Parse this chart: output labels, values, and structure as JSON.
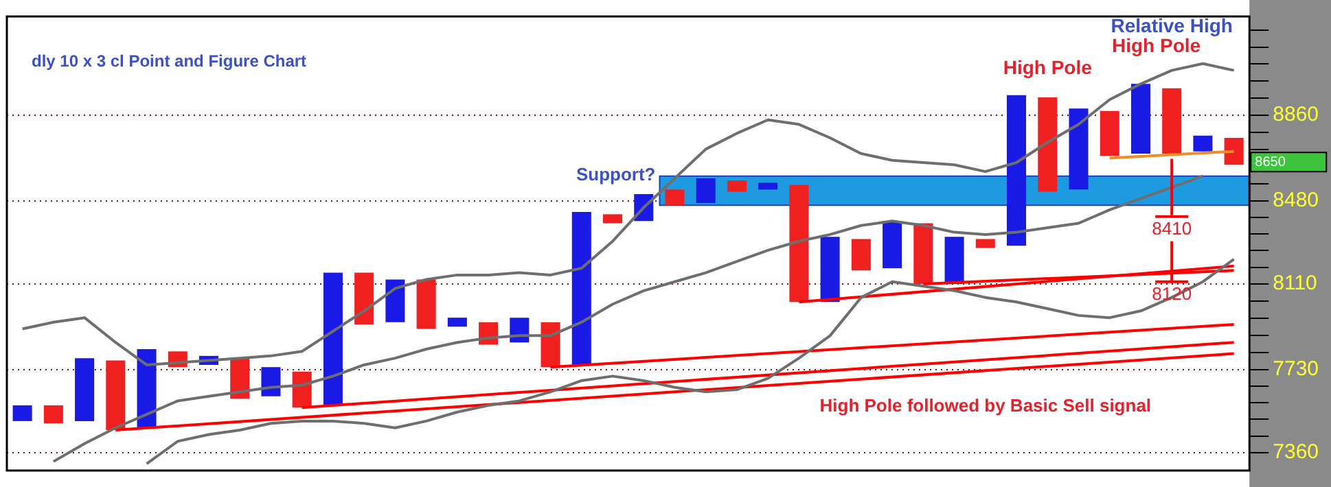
{
  "chart_data": {
    "type": "bar",
    "title": "dly 10 x 3 cl Point and Figure Chart",
    "categories": [
      null,
      null,
      null,
      null,
      null,
      null,
      null,
      null,
      null,
      null,
      null,
      null,
      null,
      null,
      null,
      null,
      null,
      null,
      null,
      null,
      null,
      null,
      null,
      null,
      null,
      null,
      null,
      null,
      null,
      null,
      null,
      null,
      null,
      null,
      null,
      null,
      null,
      null,
      null,
      null
    ],
    "series": [
      {
        "colors": [
          "#1a1ae6",
          "#f02020",
          "#1a1ae6",
          "#f02020",
          "#1a1ae6",
          "#f02020",
          "#1a1ae6",
          "#f02020",
          "#1a1ae6",
          "#f02020",
          "#1a1ae6",
          "#f02020",
          "#1a1ae6",
          "#f02020",
          "#1a1ae6",
          "#f02020",
          "#1a1ae6",
          "#f02020",
          "#1a1ae6",
          "#f02020",
          "#1a1ae6",
          "#f02020",
          "#1a1ae6",
          "#f02020",
          "#1a1ae6",
          "#f02020",
          "#1a1ae6",
          "#f02020",
          "#1a1ae6",
          "#f02020",
          "#1a1ae6",
          "#f02020",
          "#1a1ae6",
          "#f02020",
          "#1a1ae6",
          "#f02020",
          "#1a1ae6",
          "#f02020",
          "#1a1ae6",
          "#f02020"
        ],
        "base": [
          7500,
          7490,
          7500,
          7460,
          7470,
          7740,
          7750,
          7600,
          7610,
          7560,
          7570,
          7930,
          7940,
          7910,
          7920,
          7840,
          7850,
          7740,
          7750,
          8380,
          8390,
          8460,
          8470,
          8520,
          8530,
          8030,
          8030,
          8170,
          8180,
          8110,
          8110,
          8270,
          8280,
          8520,
          8530,
          8680,
          8690,
          8690,
          8700,
          8640
        ],
        "values": [
          70,
          80,
          280,
          310,
          350,
          70,
          40,
          180,
          130,
          160,
          590,
          230,
          190,
          220,
          40,
          100,
          110,
          200,
          680,
          40,
          120,
          70,
          110,
          50,
          30,
          520,
          290,
          140,
          210,
          270,
          210,
          40,
          670,
          420,
          360,
          200,
          310,
          290,
          70,
          120
        ]
      },
      {
        "type": "line",
        "color": "#6e6e6e",
        "values": [
          7910,
          7940,
          7960,
          7850,
          7750,
          7760,
          7770,
          7780,
          7790,
          7810,
          7900,
          7990,
          8090,
          8130,
          8150,
          8150,
          8160,
          8150,
          8180,
          8300,
          8450,
          8580,
          8710,
          8780,
          8840,
          8820,
          8760,
          8690,
          8660,
          8650,
          8640,
          8610,
          8650,
          8740,
          8820,
          8930,
          9000,
          9060,
          9090,
          9060
        ]
      },
      {
        "type": "line",
        "color": "#6e6e6e",
        "values": [
          null,
          7320,
          7400,
          7470,
          7530,
          7590,
          7610,
          7630,
          7650,
          7660,
          7700,
          7750,
          7780,
          7820,
          7850,
          7870,
          7880,
          7880,
          7940,
          8020,
          8080,
          8120,
          8160,
          8210,
          8260,
          8300,
          8330,
          8370,
          8390,
          8370,
          8340,
          8330,
          8340,
          8360,
          8380,
          8440,
          8490,
          8540,
          8590,
          null
        ]
      },
      {
        "type": "line",
        "color": "#6e6e6e",
        "values": [
          null,
          null,
          null,
          null,
          7310,
          7410,
          7440,
          7460,
          7490,
          7500,
          7500,
          7490,
          7470,
          7500,
          7540,
          7570,
          7590,
          7630,
          7680,
          7700,
          7680,
          7650,
          7630,
          7640,
          7690,
          7780,
          7880,
          8050,
          8120,
          8100,
          8080,
          8050,
          8030,
          8000,
          7970,
          7960,
          7990,
          8050,
          8120,
          8220
        ]
      },
      {
        "type": "line",
        "color": "#ff0000",
        "values": [
          null,
          null,
          null,
          7460,
          null,
          null,
          null,
          null,
          null,
          null,
          null,
          null,
          null,
          null,
          null,
          null,
          null,
          null,
          null,
          null,
          null,
          null,
          null,
          null,
          null,
          null,
          null,
          null,
          null,
          null,
          null,
          null,
          null,
          null,
          null,
          null,
          null,
          null,
          null,
          7800
        ]
      },
      {
        "type": "line",
        "color": "#ff0000",
        "values": [
          null,
          null,
          null,
          null,
          null,
          null,
          null,
          null,
          null,
          7560,
          null,
          null,
          null,
          null,
          null,
          null,
          null,
          null,
          null,
          null,
          null,
          null,
          null,
          null,
          null,
          null,
          null,
          null,
          null,
          null,
          null,
          null,
          null,
          null,
          null,
          null,
          null,
          null,
          null,
          7850
        ]
      },
      {
        "type": "line",
        "color": "#ff0000",
        "values": [
          null,
          null,
          null,
          null,
          null,
          null,
          null,
          null,
          null,
          null,
          null,
          null,
          null,
          null,
          null,
          null,
          null,
          7740,
          null,
          null,
          null,
          null,
          null,
          null,
          null,
          null,
          null,
          null,
          null,
          null,
          null,
          null,
          null,
          null,
          null,
          null,
          null,
          null,
          null,
          7930
        ]
      },
      {
        "type": "line",
        "color": "#ff0000",
        "values": [
          null,
          null,
          null,
          null,
          null,
          null,
          null,
          null,
          null,
          null,
          null,
          null,
          null,
          null,
          null,
          null,
          null,
          null,
          null,
          null,
          null,
          null,
          null,
          null,
          null,
          8030,
          null,
          null,
          null,
          null,
          null,
          null,
          null,
          null,
          null,
          null,
          null,
          null,
          null,
          8190
        ]
      },
      {
        "type": "line",
        "color": "#ff0000",
        "values": [
          null,
          null,
          null,
          null,
          null,
          null,
          null,
          null,
          null,
          null,
          null,
          null,
          null,
          null,
          null,
          null,
          null,
          null,
          null,
          null,
          null,
          null,
          null,
          null,
          null,
          null,
          null,
          null,
          null,
          8110,
          null,
          null,
          null,
          null,
          null,
          null,
          null,
          null,
          null,
          8170
        ]
      },
      {
        "type": "line",
        "color": "#f28c28",
        "values": [
          null,
          null,
          null,
          null,
          null,
          null,
          null,
          null,
          null,
          null,
          null,
          null,
          null,
          null,
          null,
          null,
          null,
          null,
          null,
          null,
          null,
          null,
          null,
          null,
          null,
          null,
          null,
          null,
          null,
          null,
          null,
          null,
          null,
          null,
          null,
          8670,
          null,
          null,
          null,
          8700
        ]
      }
    ],
    "ylim": [
      7280,
      9300
    ],
    "yticks": [
      7360,
      {
        "value": 7434,
        "label": null
      },
      {
        "value": 7508,
        "label": null
      },
      {
        "value": 7582,
        "label": null
      },
      {
        "value": 7656,
        "label": null
      },
      7730,
      {
        "value": 7806,
        "label": null
      },
      {
        "value": 7882,
        "label": null
      },
      {
        "value": 7958,
        "label": null
      },
      {
        "value": 8034,
        "label": null
      },
      8110,
      {
        "value": 8184,
        "label": null
      },
      {
        "value": 8258,
        "label": null
      },
      {
        "value": 8332,
        "label": null
      },
      {
        "value": 8406,
        "label": null
      },
      8480,
      {
        "value": 8556,
        "label": null
      },
      {
        "value": 8632,
        "label": null
      },
      {
        "value": 8708,
        "label": null
      },
      {
        "value": 8784,
        "label": null
      },
      8860,
      {
        "value": 8936,
        "label": null
      },
      {
        "value": 9012,
        "label": null
      },
      {
        "value": 9088,
        "label": null
      },
      {
        "value": 9164,
        "label": null
      },
      {
        "value": 9240,
        "label": null
      }
    ],
    "grid": "y",
    "legend": false,
    "tick_labels": "y",
    "marker": "none",
    "bands": [
      {
        "axis": "y",
        "from": 8460,
        "to": 8590,
        "label": "Support?",
        "color": "#1e9be0"
      }
    ],
    "ref_lines": [
      {
        "axis": "y",
        "value": 8410,
        "label": "8410",
        "color": "#ff0000"
      },
      {
        "axis": "y",
        "value": 8120,
        "label": "8120",
        "color": "#ff0000"
      }
    ],
    "annotations": [
      "High Pole",
      "Relative High",
      "High Pole",
      "High Pole followed by Basic Sell signal",
      "8650"
    ]
  }
}
